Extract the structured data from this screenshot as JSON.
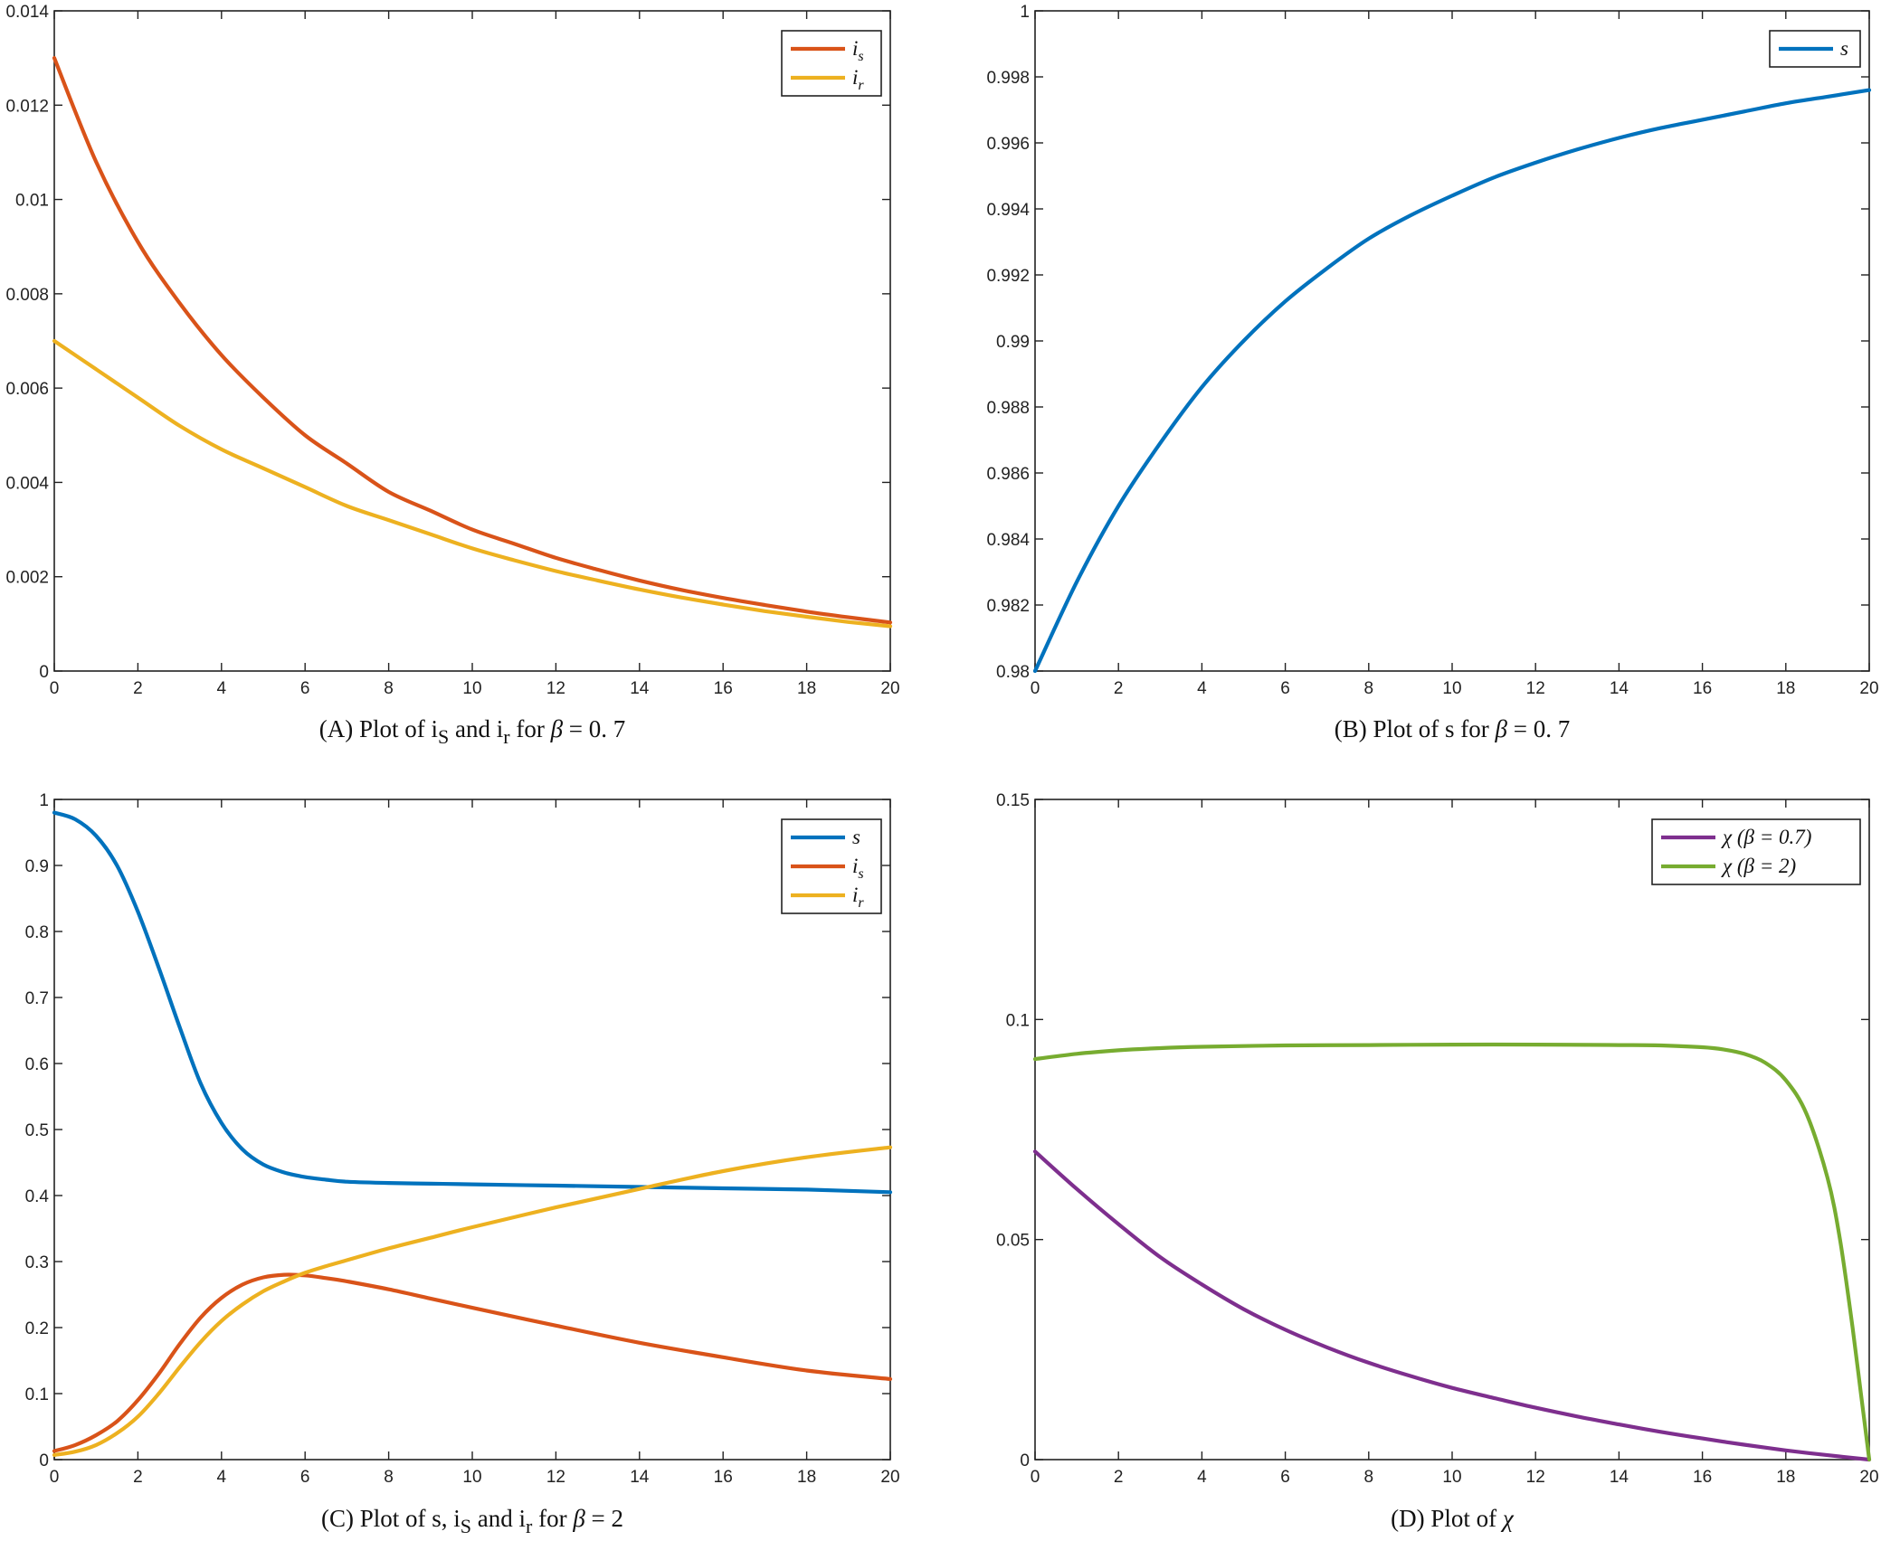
{
  "chart_data": [
    {
      "id": "A",
      "type": "line",
      "caption": "(A) Plot of  i_S and  i_r  for  β  =  0. 7",
      "caption_parts": [
        "(A) Plot of ",
        "i",
        "S",
        " and ",
        "i",
        "r",
        " for ",
        "β",
        "  =  0. 7"
      ],
      "xlim": [
        0,
        20
      ],
      "ylim": [
        0,
        0.014
      ],
      "xticks": [
        0,
        2,
        4,
        6,
        8,
        10,
        12,
        14,
        16,
        18,
        20
      ],
      "yticks": [
        0,
        0.002,
        0.004,
        0.006,
        0.008,
        0.01,
        0.012,
        0.014
      ],
      "ytick_labels": [
        "0",
        "0.002",
        "0.004",
        "0.006",
        "0.008",
        "0.01",
        "0.012",
        "0.014"
      ],
      "legend_position": "top-right",
      "series": [
        {
          "name": "i_s",
          "label_main": "i",
          "label_sub": "s",
          "color": "#D95319",
          "x": [
            0,
            1,
            2,
            3,
            4,
            5,
            6,
            7,
            8,
            9,
            10,
            11,
            12,
            13,
            14,
            15,
            16,
            17,
            18,
            19,
            20
          ],
          "y": [
            0.013,
            0.0108,
            0.0091,
            0.0078,
            0.0067,
            0.0058,
            0.005,
            0.0044,
            0.0038,
            0.0034,
            0.003,
            0.0027,
            0.0024,
            0.00215,
            0.00192,
            0.00172,
            0.00155,
            0.0014,
            0.00126,
            0.00114,
            0.00103
          ]
        },
        {
          "name": "i_r",
          "label_main": "i",
          "label_sub": "r",
          "color": "#EDB120",
          "x": [
            0,
            1,
            2,
            3,
            4,
            5,
            6,
            7,
            8,
            9,
            10,
            11,
            12,
            13,
            14,
            15,
            16,
            17,
            18,
            19,
            20
          ],
          "y": [
            0.007,
            0.0064,
            0.0058,
            0.0052,
            0.0047,
            0.0043,
            0.0039,
            0.0035,
            0.0032,
            0.0029,
            0.0026,
            0.00235,
            0.00212,
            0.00192,
            0.00173,
            0.00156,
            0.00141,
            0.00127,
            0.00115,
            0.00104,
            0.00095
          ]
        }
      ]
    },
    {
      "id": "B",
      "type": "line",
      "caption": "(B) Plot of  s for  β  =  0. 7",
      "caption_parts": [
        "(B) Plot of ",
        "s",
        " for ",
        "β",
        "  =  0. 7"
      ],
      "xlim": [
        0,
        20
      ],
      "ylim": [
        0.98,
        1
      ],
      "xticks": [
        0,
        2,
        4,
        6,
        8,
        10,
        12,
        14,
        16,
        18,
        20
      ],
      "yticks": [
        0.98,
        0.982,
        0.984,
        0.986,
        0.988,
        0.99,
        0.992,
        0.994,
        0.996,
        0.998,
        1
      ],
      "ytick_labels": [
        "0.98",
        "0.982",
        "0.984",
        "0.986",
        "0.988",
        "0.99",
        "0.992",
        "0.994",
        "0.996",
        "0.998",
        "1"
      ],
      "legend_position": "top-right",
      "series": [
        {
          "name": "s",
          "label_main": "s",
          "label_sub": "",
          "color": "#0072BD",
          "x": [
            0,
            1,
            2,
            3,
            4,
            5,
            6,
            7,
            8,
            9,
            10,
            11,
            12,
            13,
            14,
            15,
            16,
            17,
            18,
            19,
            20
          ],
          "y": [
            0.98,
            0.9827,
            0.985,
            0.9869,
            0.9886,
            0.99,
            0.9912,
            0.9922,
            0.9931,
            0.9938,
            0.9944,
            0.99495,
            0.9954,
            0.9958,
            0.99615,
            0.99645,
            0.9967,
            0.99695,
            0.9972,
            0.9974,
            0.9976
          ]
        }
      ]
    },
    {
      "id": "C",
      "type": "line",
      "caption": "(C) Plot of  s,  i_S and  i_r  for  β  =  2",
      "caption_parts": [
        "(C) Plot of ",
        "s,",
        " ",
        "i",
        "S",
        " and ",
        "i",
        "r",
        " for ",
        "β",
        "  =  2"
      ],
      "xlim": [
        0,
        20
      ],
      "ylim": [
        0,
        1
      ],
      "xticks": [
        0,
        2,
        4,
        6,
        8,
        10,
        12,
        14,
        16,
        18,
        20
      ],
      "yticks": [
        0,
        0.1,
        0.2,
        0.3,
        0.4,
        0.5,
        0.6,
        0.7,
        0.8,
        0.9,
        1
      ],
      "ytick_labels": [
        "0",
        "0.1",
        "0.2",
        "0.3",
        "0.4",
        "0.5",
        "0.6",
        "0.7",
        "0.8",
        "0.9",
        "1"
      ],
      "legend_position": "top-right",
      "series": [
        {
          "name": "s",
          "label_main": "s",
          "label_sub": "",
          "color": "#0072BD",
          "x": [
            0,
            0.5,
            1,
            1.5,
            2,
            2.5,
            3,
            3.5,
            4,
            4.5,
            5,
            5.5,
            6,
            6.5,
            7,
            8,
            9,
            10,
            12,
            14,
            16,
            18,
            20
          ],
          "y": [
            0.98,
            0.97,
            0.945,
            0.9,
            0.83,
            0.745,
            0.655,
            0.57,
            0.51,
            0.47,
            0.447,
            0.435,
            0.428,
            0.424,
            0.421,
            0.419,
            0.418,
            0.417,
            0.415,
            0.413,
            0.411,
            0.409,
            0.405
          ]
        },
        {
          "name": "i_s",
          "label_main": "i",
          "label_sub": "s",
          "color": "#D95319",
          "x": [
            0,
            0.5,
            1,
            1.5,
            2,
            2.5,
            3,
            3.5,
            4,
            4.5,
            5,
            5.5,
            6,
            6.5,
            7,
            8,
            9,
            10,
            12,
            14,
            16,
            18,
            20
          ],
          "y": [
            0.013,
            0.022,
            0.037,
            0.058,
            0.09,
            0.13,
            0.175,
            0.215,
            0.245,
            0.265,
            0.276,
            0.28,
            0.279,
            0.275,
            0.27,
            0.258,
            0.244,
            0.23,
            0.203,
            0.177,
            0.155,
            0.135,
            0.122
          ]
        },
        {
          "name": "i_r",
          "label_main": "i",
          "label_sub": "r",
          "color": "#EDB120",
          "x": [
            0,
            0.5,
            1,
            1.5,
            2,
            2.5,
            3,
            3.5,
            4,
            4.5,
            5,
            5.5,
            6,
            6.5,
            7,
            8,
            9,
            10,
            12,
            14,
            16,
            18,
            20
          ],
          "y": [
            0.007,
            0.012,
            0.022,
            0.04,
            0.065,
            0.1,
            0.14,
            0.178,
            0.21,
            0.235,
            0.255,
            0.27,
            0.283,
            0.293,
            0.302,
            0.32,
            0.336,
            0.352,
            0.382,
            0.41,
            0.437,
            0.458,
            0.473
          ]
        }
      ]
    },
    {
      "id": "D",
      "type": "line",
      "caption": "(D) Plot of  χ",
      "caption_parts": [
        "(D) Plot of ",
        "χ"
      ],
      "xlim": [
        0,
        20
      ],
      "ylim": [
        0,
        0.15
      ],
      "xticks": [
        0,
        2,
        4,
        6,
        8,
        10,
        12,
        14,
        16,
        18,
        20
      ],
      "yticks": [
        0,
        0.05,
        0.1,
        0.15
      ],
      "ytick_labels": [
        "0",
        "0.05",
        "0.1",
        "0.15"
      ],
      "legend_position": "top-right",
      "series": [
        {
          "name": "χ  (β = 0.7)",
          "label_main": "χ  (β = 0.7)",
          "label_sub": "",
          "color": "#7E2F8E",
          "x": [
            0,
            1,
            2,
            3,
            4,
            5,
            6,
            7,
            8,
            9,
            10,
            11,
            12,
            13,
            14,
            15,
            16,
            17,
            18,
            19,
            20
          ],
          "y": [
            0.07,
            0.0615,
            0.0535,
            0.046,
            0.0398,
            0.0342,
            0.0295,
            0.0255,
            0.022,
            0.019,
            0.0163,
            0.014,
            0.0118,
            0.0098,
            0.008,
            0.0063,
            0.0048,
            0.0034,
            0.0021,
            0.001,
            0.0
          ]
        },
        {
          "name": "χ  (β = 2)",
          "label_main": "χ  (β = 2)",
          "label_sub": "",
          "color": "#77AC30",
          "x": [
            0,
            1,
            2,
            3,
            4,
            6,
            8,
            10,
            12,
            14,
            15,
            16,
            16.5,
            17,
            17.5,
            18,
            18.5,
            19,
            19.3,
            19.6,
            19.8,
            20
          ],
          "y": [
            0.091,
            0.0922,
            0.093,
            0.0935,
            0.0938,
            0.0941,
            0.0942,
            0.0943,
            0.0943,
            0.0942,
            0.0941,
            0.0937,
            0.0932,
            0.0922,
            0.0902,
            0.0862,
            0.0785,
            0.064,
            0.05,
            0.03,
            0.015,
            0.0
          ]
        }
      ]
    }
  ]
}
